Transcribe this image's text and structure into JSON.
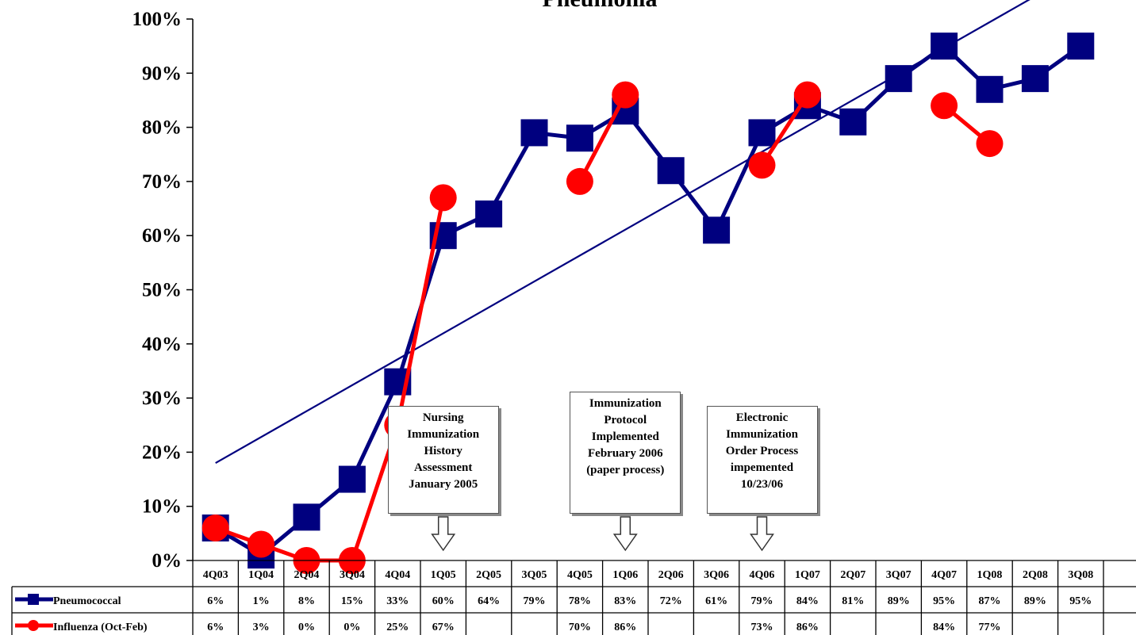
{
  "chart_data": {
    "type": "line",
    "title": "Pneumonia",
    "categories": [
      "4Q03",
      "1Q04",
      "2Q04",
      "3Q04",
      "4Q04",
      "1Q05",
      "2Q05",
      "3Q05",
      "4Q05",
      "1Q06",
      "2Q06",
      "3Q06",
      "4Q06",
      "1Q07",
      "2Q07",
      "3Q07",
      "4Q07",
      "1Q08",
      "2Q08",
      "3Q08"
    ],
    "ylim": [
      0,
      100
    ],
    "yticks": [
      "0%",
      "10%",
      "20%",
      "30%",
      "40%",
      "50%",
      "60%",
      "70%",
      "80%",
      "90%",
      "100%"
    ],
    "series": [
      {
        "name": "Pneumococcal",
        "color": "#00007f",
        "marker": "square",
        "values": [
          6,
          1,
          8,
          15,
          33,
          60,
          64,
          79,
          78,
          83,
          72,
          61,
          79,
          84,
          81,
          89,
          95,
          87,
          89,
          95
        ],
        "labels": [
          "6%",
          "1%",
          "8%",
          "15%",
          "33%",
          "60%",
          "64%",
          "79%",
          "78%",
          "83%",
          "72%",
          "61%",
          "79%",
          "84%",
          "81%",
          "89%",
          "95%",
          "87%",
          "89%",
          "95%"
        ]
      },
      {
        "name": "Influenza (Oct-Feb)",
        "color": "#ff0000",
        "marker": "circle",
        "values": [
          6,
          3,
          0,
          0,
          25,
          67,
          null,
          null,
          70,
          86,
          null,
          null,
          73,
          86,
          null,
          null,
          84,
          77,
          null,
          null
        ],
        "labels": [
          "6%",
          "3%",
          "0%",
          "0%",
          "25%",
          "67%",
          "",
          "",
          "70%",
          "86%",
          "",
          "",
          "73%",
          "86%",
          "",
          "",
          "84%",
          "77%",
          "",
          ""
        ]
      }
    ],
    "trendline": {
      "color": "#00007f",
      "start": [
        0,
        18
      ],
      "end": [
        19,
        109
      ]
    },
    "annotations": [
      {
        "lines": [
          "Nursing",
          "Immunization",
          "History",
          "Assessment",
          "January 2005"
        ],
        "category": "1Q05"
      },
      {
        "lines": [
          "Immunization",
          "Protocol",
          "Implemented",
          "February 2006",
          "(paper process)"
        ],
        "category": "1Q06"
      },
      {
        "lines": [
          "Electronic",
          "Immunization",
          "Order Process",
          "impemented",
          "10/23/06"
        ],
        "category": "4Q06"
      }
    ]
  }
}
